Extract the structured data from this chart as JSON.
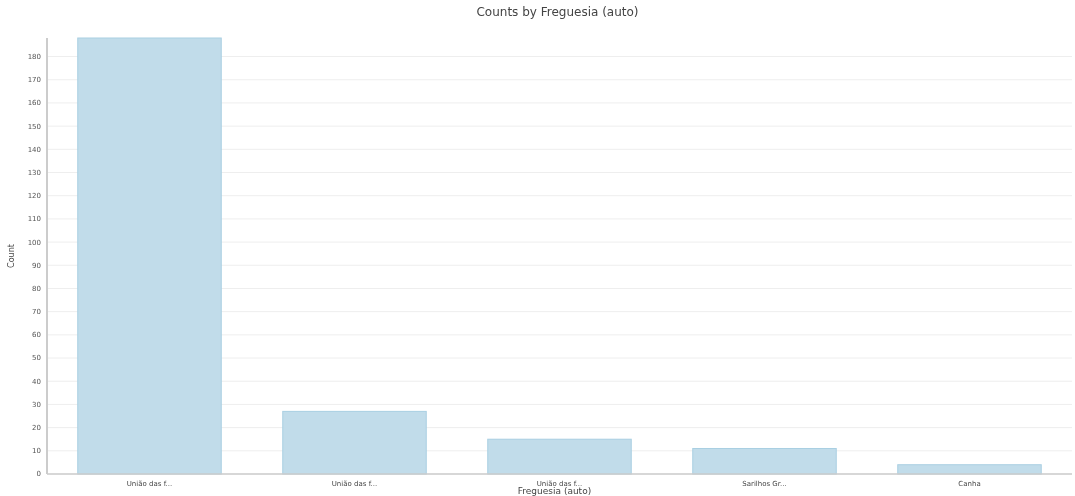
{
  "chart_data": {
    "type": "bar",
    "title": "Counts by Freguesia (auto)",
    "xlabel": "Freguesia (auto)",
    "ylabel": "Count",
    "categories": [
      "União das f...",
      "União das f...",
      "União das f...",
      "Sarilhos Gr...",
      "Canha"
    ],
    "values": [
      188,
      27,
      15,
      11,
      4
    ],
    "color": "#c1dcea",
    "ylim": [
      0,
      188
    ],
    "yticks": [
      0,
      10,
      20,
      30,
      40,
      50,
      60,
      70,
      80,
      90,
      100,
      110,
      120,
      130,
      140,
      150,
      160,
      170,
      180
    ],
    "grid": "y"
  }
}
